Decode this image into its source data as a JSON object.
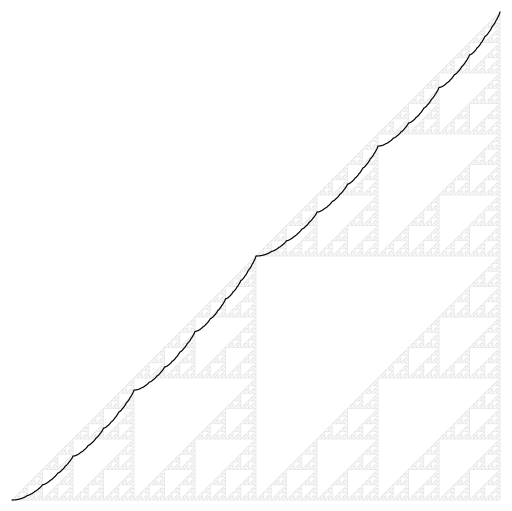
{
  "diagram": {
    "kind": "sierpinski-triangle-with-curve",
    "depth": 7,
    "colors": {
      "background": "#ffffff",
      "triangle_outline": "#e6e6e6",
      "curve": "#000000"
    }
  }
}
